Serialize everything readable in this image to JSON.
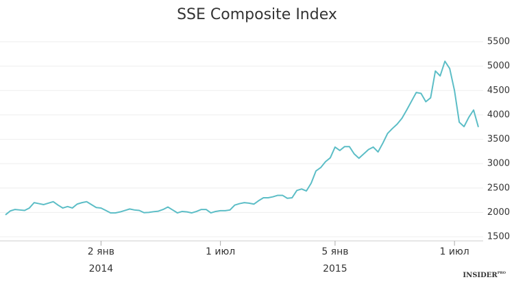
{
  "chart_data": {
    "type": "line",
    "title": "SSE Composite Index",
    "categories": [
      null,
      null,
      null,
      null,
      null,
      null,
      null,
      null,
      null,
      null,
      null,
      null,
      null,
      null,
      null,
      null,
      null,
      null,
      null,
      null,
      "2 янв",
      null,
      null,
      null,
      null,
      null,
      null,
      null,
      null,
      null,
      null,
      null,
      null,
      null,
      null,
      null,
      null,
      null,
      null,
      null,
      null,
      null,
      null,
      null,
      null,
      "1 июл",
      null,
      null,
      null,
      null,
      null,
      null,
      null,
      null,
      null,
      null,
      null,
      null,
      null,
      null,
      null,
      null,
      null,
      null,
      null,
      null,
      null,
      null,
      null,
      "5 янв",
      null,
      null,
      null,
      null,
      null,
      null,
      null,
      null,
      null,
      null,
      null,
      null,
      null,
      null,
      null,
      null,
      null,
      null,
      null,
      null,
      null,
      null,
      null,
      null,
      "1 июл",
      null,
      null,
      null,
      null,
      null
    ],
    "category_years": [
      null,
      null,
      null,
      null,
      null,
      null,
      null,
      null,
      null,
      null,
      null,
      null,
      null,
      null,
      null,
      null,
      null,
      null,
      null,
      null,
      "2014",
      null,
      null,
      null,
      null,
      null,
      null,
      null,
      null,
      null,
      null,
      null,
      null,
      null,
      null,
      null,
      null,
      null,
      null,
      null,
      null,
      null,
      null,
      null,
      null,
      null,
      null,
      null,
      null,
      null,
      null,
      null,
      null,
      null,
      null,
      null,
      null,
      null,
      null,
      null,
      null,
      null,
      null,
      null,
      null,
      null,
      null,
      null,
      null,
      "2015",
      null,
      null,
      null,
      null,
      null,
      null,
      null,
      null,
      null,
      null,
      null,
      null,
      null,
      null,
      null,
      null,
      null,
      null,
      null,
      null,
      null,
      null,
      null,
      null,
      null,
      null,
      null,
      null,
      null,
      null
    ],
    "series": [
      {
        "name": "SSE Composite",
        "color": "#5bbdc6",
        "values": [
          1950,
          2030,
          2060,
          2050,
          2040,
          2090,
          2200,
          2180,
          2160,
          2190,
          2220,
          2150,
          2090,
          2120,
          2090,
          2170,
          2200,
          2220,
          2160,
          2100,
          2090,
          2040,
          1990,
          1990,
          2010,
          2040,
          2070,
          2050,
          2040,
          1995,
          2000,
          2015,
          2025,
          2060,
          2110,
          2050,
          1990,
          2020,
          2010,
          1990,
          2020,
          2060,
          2060,
          1990,
          2020,
          2035,
          2035,
          2050,
          2150,
          2180,
          2200,
          2190,
          2170,
          2240,
          2300,
          2300,
          2320,
          2350,
          2350,
          2290,
          2300,
          2450,
          2480,
          2440,
          2600,
          2850,
          2920,
          3040,
          3120,
          3340,
          3270,
          3350,
          3350,
          3200,
          3110,
          3200,
          3290,
          3340,
          3240,
          3420,
          3620,
          3720,
          3810,
          3930,
          4100,
          4280,
          4460,
          4440,
          4270,
          4350,
          4900,
          4800,
          5100,
          4950,
          4500,
          3850,
          3760,
          3950,
          4100,
          3750
        ]
      }
    ],
    "ylim": [
      1500,
      5500
    ],
    "yticks": [
      1500,
      2000,
      2500,
      3000,
      3500,
      4000,
      4500,
      5000,
      5500
    ],
    "grid": true,
    "watermark": "INSIDER",
    "watermark_sup": "PRO"
  }
}
